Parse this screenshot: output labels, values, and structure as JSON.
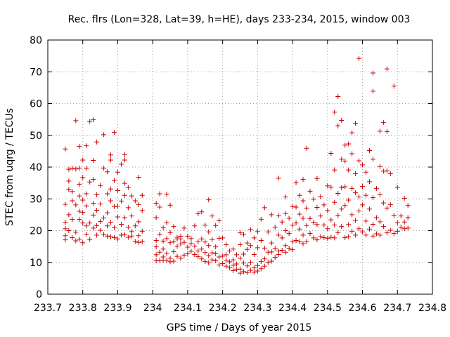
{
  "chart_data": {
    "type": "scatter",
    "title": "Rec. flrs (Lon=328, Lat=39, h=HE), days 233-234, 2015, window 003",
    "xlabel": "GPS time / Days of year 2015",
    "ylabel": "STEC from uqrg / TECUs",
    "xlim": [
      233.7,
      234.8
    ],
    "ylim": [
      0,
      80
    ],
    "x_ticks": [
      233.7,
      233.8,
      233.9,
      234.0,
      234.1,
      234.2,
      234.3,
      234.4,
      234.5,
      234.6,
      234.7,
      234.8
    ],
    "x_tick_labels": [
      "233.7",
      "233.8",
      "233.9",
      "234",
      "234.1",
      "234.2",
      "234.3",
      "234.4",
      "234.5",
      "234.6",
      "234.7",
      "234.8"
    ],
    "y_ticks": [
      0,
      10,
      20,
      30,
      40,
      50,
      60,
      70,
      80
    ],
    "y_tick_labels": [
      "0",
      "10",
      "20",
      "30",
      "40",
      "50",
      "60",
      "70",
      "80"
    ],
    "grid": true,
    "marker": "+",
    "color": "#cc0000",
    "points": [
      [
        233.75,
        45.7
      ],
      [
        233.75,
        28.3
      ],
      [
        233.75,
        22.6
      ],
      [
        233.75,
        20.6
      ],
      [
        233.75,
        18.4
      ],
      [
        233.75,
        17.1
      ],
      [
        233.76,
        39.3
      ],
      [
        233.76,
        35.6
      ],
      [
        233.76,
        33.0
      ],
      [
        233.76,
        25.0
      ],
      [
        233.76,
        20.0
      ],
      [
        233.77,
        39.6
      ],
      [
        233.77,
        32.3
      ],
      [
        233.77,
        29.4
      ],
      [
        233.77,
        23.5
      ],
      [
        233.77,
        17.8
      ],
      [
        233.78,
        54.6
      ],
      [
        233.78,
        39.4
      ],
      [
        233.78,
        28.1
      ],
      [
        233.78,
        19.5
      ],
      [
        233.78,
        16.8
      ],
      [
        233.79,
        46.5
      ],
      [
        233.79,
        39.7
      ],
      [
        233.79,
        34.6
      ],
      [
        233.79,
        30.9
      ],
      [
        233.79,
        26.1
      ],
      [
        233.79,
        23.5
      ],
      [
        233.79,
        17.3
      ],
      [
        233.8,
        42.2
      ],
      [
        233.8,
        36.7
      ],
      [
        233.8,
        29.6
      ],
      [
        233.8,
        25.7
      ],
      [
        233.8,
        22.4
      ],
      [
        233.8,
        16.2
      ],
      [
        233.81,
        46.7
      ],
      [
        233.81,
        39.6
      ],
      [
        233.81,
        31.6
      ],
      [
        233.81,
        27.8
      ],
      [
        233.81,
        21.5
      ],
      [
        233.81,
        18.9
      ],
      [
        233.82,
        54.4
      ],
      [
        233.82,
        35.3
      ],
      [
        233.82,
        22.4
      ],
      [
        233.82,
        17.2
      ],
      [
        233.83,
        54.9
      ],
      [
        233.83,
        42.1
      ],
      [
        233.83,
        36.1
      ],
      [
        233.83,
        28.6
      ],
      [
        233.83,
        24.9
      ],
      [
        233.83,
        20.8
      ],
      [
        233.84,
        47.9
      ],
      [
        233.84,
        31.3
      ],
      [
        233.84,
        26.4
      ],
      [
        233.84,
        21.6
      ],
      [
        233.84,
        18.6
      ],
      [
        233.85,
        34.2
      ],
      [
        233.85,
        28.4
      ],
      [
        233.85,
        22.9
      ],
      [
        233.85,
        20.1
      ],
      [
        233.86,
        50.2
      ],
      [
        233.86,
        39.7
      ],
      [
        233.86,
        24.0
      ],
      [
        233.86,
        18.8
      ],
      [
        233.87,
        38.5
      ],
      [
        233.87,
        31.6
      ],
      [
        233.87,
        25.6
      ],
      [
        233.87,
        21.5
      ],
      [
        233.87,
        18.3
      ],
      [
        233.88,
        43.8
      ],
      [
        233.88,
        42.2
      ],
      [
        233.88,
        33.1
      ],
      [
        233.88,
        29.4
      ],
      [
        233.88,
        22.6
      ],
      [
        233.88,
        18.1
      ],
      [
        233.89,
        50.9
      ],
      [
        233.89,
        35.8
      ],
      [
        233.89,
        27.6
      ],
      [
        233.89,
        20.9
      ],
      [
        233.89,
        17.8
      ],
      [
        233.9,
        38.4
      ],
      [
        233.9,
        32.6
      ],
      [
        233.9,
        27.7
      ],
      [
        233.9,
        24.3
      ],
      [
        233.9,
        17.4
      ],
      [
        233.91,
        40.9
      ],
      [
        233.91,
        29.3
      ],
      [
        233.91,
        22.0
      ],
      [
        233.91,
        18.6
      ],
      [
        233.92,
        43.9
      ],
      [
        233.92,
        42.2
      ],
      [
        233.92,
        34.9
      ],
      [
        233.92,
        31.1
      ],
      [
        233.92,
        24.1
      ],
      [
        233.92,
        18.7
      ],
      [
        233.93,
        33.6
      ],
      [
        233.93,
        27.2
      ],
      [
        233.93,
        21.1
      ],
      [
        233.93,
        17.9
      ],
      [
        233.94,
        30.9
      ],
      [
        233.94,
        24.6
      ],
      [
        233.94,
        19.7
      ],
      [
        233.94,
        18.3
      ],
      [
        233.95,
        29.4
      ],
      [
        233.95,
        21.5
      ],
      [
        233.95,
        16.6
      ],
      [
        233.96,
        36.8
      ],
      [
        233.96,
        28.2
      ],
      [
        233.96,
        22.8
      ],
      [
        233.96,
        18.4
      ],
      [
        233.96,
        16.3
      ],
      [
        233.97,
        31.1
      ],
      [
        233.97,
        26.3
      ],
      [
        233.97,
        19.8
      ],
      [
        233.97,
        16.5
      ],
      [
        234.01,
        28.6
      ],
      [
        234.01,
        24.1
      ],
      [
        234.01,
        16.9
      ],
      [
        234.01,
        14.9
      ],
      [
        234.01,
        12.4
      ],
      [
        234.01,
        10.5
      ],
      [
        234.02,
        31.6
      ],
      [
        234.02,
        27.4
      ],
      [
        234.02,
        18.9
      ],
      [
        234.02,
        13.2
      ],
      [
        234.02,
        10.6
      ],
      [
        234.03,
        20.9
      ],
      [
        234.03,
        16.7
      ],
      [
        234.03,
        14.2
      ],
      [
        234.03,
        11.7
      ],
      [
        234.03,
        10.7
      ],
      [
        234.04,
        31.5
      ],
      [
        234.04,
        22.5
      ],
      [
        234.04,
        17.5
      ],
      [
        234.04,
        12.9
      ],
      [
        234.04,
        10.6
      ],
      [
        234.05,
        28.0
      ],
      [
        234.05,
        19.4
      ],
      [
        234.05,
        16.2
      ],
      [
        234.05,
        11.3
      ],
      [
        234.05,
        10.2
      ],
      [
        234.06,
        21.3
      ],
      [
        234.06,
        16.5
      ],
      [
        234.06,
        13.4
      ],
      [
        234.06,
        10.4
      ],
      [
        234.07,
        17.9
      ],
      [
        234.07,
        17.4
      ],
      [
        234.07,
        15.1
      ],
      [
        234.07,
        11.9
      ],
      [
        234.08,
        18.2
      ],
      [
        234.08,
        17.4
      ],
      [
        234.08,
        15.8
      ],
      [
        234.08,
        11.3
      ],
      [
        234.09,
        20.8
      ],
      [
        234.09,
        16.3
      ],
      [
        234.09,
        12.3
      ],
      [
        234.1,
        18.2
      ],
      [
        234.1,
        14.8
      ],
      [
        234.1,
        12.7
      ],
      [
        234.11,
        17.5
      ],
      [
        234.11,
        15.9
      ],
      [
        234.11,
        13.5
      ],
      [
        234.12,
        21.5
      ],
      [
        234.12,
        15.1
      ],
      [
        234.12,
        12.5
      ],
      [
        234.13,
        25.3
      ],
      [
        234.13,
        16.5
      ],
      [
        234.13,
        13.6
      ],
      [
        234.13,
        11.8
      ],
      [
        234.14,
        25.9
      ],
      [
        234.14,
        17.4
      ],
      [
        234.14,
        14.2
      ],
      [
        234.14,
        11.1
      ],
      [
        234.15,
        21.7
      ],
      [
        234.15,
        16.4
      ],
      [
        234.15,
        13.1
      ],
      [
        234.15,
        10.3
      ],
      [
        234.16,
        29.7
      ],
      [
        234.16,
        19.6
      ],
      [
        234.16,
        15.3
      ],
      [
        234.16,
        12.1
      ],
      [
        234.16,
        9.9
      ],
      [
        234.17,
        24.6
      ],
      [
        234.17,
        17.2
      ],
      [
        234.17,
        13.0
      ],
      [
        234.17,
        10.8
      ],
      [
        234.18,
        21.6
      ],
      [
        234.18,
        14.9
      ],
      [
        234.18,
        12.7
      ],
      [
        234.18,
        10.5
      ],
      [
        234.19,
        23.1
      ],
      [
        234.19,
        17.6
      ],
      [
        234.19,
        11.7
      ],
      [
        234.19,
        9.2
      ],
      [
        234.2,
        17.7
      ],
      [
        234.2,
        12.0
      ],
      [
        234.2,
        9.6
      ],
      [
        234.21,
        15.6
      ],
      [
        234.21,
        12.4
      ],
      [
        234.21,
        10.6
      ],
      [
        234.21,
        8.8
      ],
      [
        234.22,
        13.6
      ],
      [
        234.22,
        10.2
      ],
      [
        234.22,
        8.3
      ],
      [
        234.23,
        14.2
      ],
      [
        234.23,
        10.8
      ],
      [
        234.23,
        9.1
      ],
      [
        234.23,
        7.4
      ],
      [
        234.24,
        12.4
      ],
      [
        234.24,
        9.5
      ],
      [
        234.24,
        7.8
      ],
      [
        234.25,
        19.3
      ],
      [
        234.25,
        15.6
      ],
      [
        234.25,
        11.3
      ],
      [
        234.25,
        7.9
      ],
      [
        234.25,
        6.6
      ],
      [
        234.26,
        18.9
      ],
      [
        234.26,
        12.6
      ],
      [
        234.26,
        9.8
      ],
      [
        234.26,
        7.1
      ],
      [
        234.27,
        16.1
      ],
      [
        234.27,
        14.1
      ],
      [
        234.27,
        8.9
      ],
      [
        234.27,
        6.8
      ],
      [
        234.28,
        20.3
      ],
      [
        234.28,
        15.3
      ],
      [
        234.28,
        10.0
      ],
      [
        234.28,
        7.5
      ],
      [
        234.29,
        17.7
      ],
      [
        234.29,
        12.5
      ],
      [
        234.29,
        8.3
      ],
      [
        234.29,
        6.9
      ],
      [
        234.3,
        19.7
      ],
      [
        234.3,
        14.6
      ],
      [
        234.3,
        9.0
      ],
      [
        234.3,
        7.3
      ],
      [
        234.31,
        23.6
      ],
      [
        234.31,
        16.9
      ],
      [
        234.31,
        10.3
      ],
      [
        234.31,
        8.0
      ],
      [
        234.32,
        27.2
      ],
      [
        234.32,
        14.5
      ],
      [
        234.32,
        11.1
      ],
      [
        234.32,
        8.8
      ],
      [
        234.33,
        19.6
      ],
      [
        234.33,
        13.2
      ],
      [
        234.33,
        10.0
      ],
      [
        234.34,
        25.0
      ],
      [
        234.34,
        16.1
      ],
      [
        234.34,
        13.3
      ],
      [
        234.34,
        10.4
      ],
      [
        234.35,
        21.1
      ],
      [
        234.35,
        14.4
      ],
      [
        234.35,
        11.6
      ],
      [
        234.36,
        36.5
      ],
      [
        234.36,
        24.7
      ],
      [
        234.36,
        18.6
      ],
      [
        234.36,
        13.6
      ],
      [
        234.36,
        12.5
      ],
      [
        234.37,
        22.7
      ],
      [
        234.37,
        17.7
      ],
      [
        234.37,
        13.8
      ],
      [
        234.38,
        30.6
      ],
      [
        234.38,
        25.4
      ],
      [
        234.38,
        20.0
      ],
      [
        234.38,
        15.3
      ],
      [
        234.38,
        13.2
      ],
      [
        234.39,
        23.9
      ],
      [
        234.39,
        19.1
      ],
      [
        234.39,
        14.4
      ],
      [
        234.4,
        27.6
      ],
      [
        234.4,
        21.7
      ],
      [
        234.4,
        16.5
      ],
      [
        234.4,
        14.0
      ],
      [
        234.41,
        35.1
      ],
      [
        234.41,
        27.4
      ],
      [
        234.41,
        22.4
      ],
      [
        234.41,
        16.9
      ],
      [
        234.42,
        31.1
      ],
      [
        234.42,
        25.2
      ],
      [
        234.42,
        20.5
      ],
      [
        234.42,
        16.6
      ],
      [
        234.43,
        36.1
      ],
      [
        234.43,
        29.4
      ],
      [
        234.43,
        23.9
      ],
      [
        234.43,
        18.6
      ],
      [
        234.43,
        15.9
      ],
      [
        234.44,
        45.9
      ],
      [
        234.44,
        27.1
      ],
      [
        234.44,
        21.6
      ],
      [
        234.44,
        16.6
      ],
      [
        234.45,
        32.4
      ],
      [
        234.45,
        23.8
      ],
      [
        234.45,
        19.1
      ],
      [
        234.46,
        29.9
      ],
      [
        234.46,
        22.6
      ],
      [
        234.46,
        17.7
      ],
      [
        234.47,
        36.4
      ],
      [
        234.47,
        27.3
      ],
      [
        234.47,
        21.9
      ],
      [
        234.47,
        17.1
      ],
      [
        234.48,
        30.7
      ],
      [
        234.48,
        24.6
      ],
      [
        234.48,
        18.1
      ],
      [
        234.49,
        28.1
      ],
      [
        234.49,
        21.8
      ],
      [
        234.49,
        17.8
      ],
      [
        234.5,
        34.1
      ],
      [
        234.5,
        26.3
      ],
      [
        234.5,
        20.6
      ],
      [
        234.5,
        17.6
      ],
      [
        234.51,
        44.3
      ],
      [
        234.51,
        33.7
      ],
      [
        234.51,
        23.4
      ],
      [
        234.51,
        17.9
      ],
      [
        234.52,
        57.3
      ],
      [
        234.52,
        39.1
      ],
      [
        234.52,
        28.9
      ],
      [
        234.52,
        21.8
      ],
      [
        234.52,
        17.7
      ],
      [
        234.53,
        62.2
      ],
      [
        234.53,
        53.0
      ],
      [
        234.53,
        31.7
      ],
      [
        234.53,
        24.8
      ],
      [
        234.53,
        19.4
      ],
      [
        234.54,
        54.7
      ],
      [
        234.54,
        42.5
      ],
      [
        234.54,
        33.5
      ],
      [
        234.54,
        26.8
      ],
      [
        234.54,
        21.3
      ],
      [
        234.55,
        46.9
      ],
      [
        234.55,
        41.9
      ],
      [
        234.55,
        33.8
      ],
      [
        234.55,
        27.9
      ],
      [
        234.55,
        17.8
      ],
      [
        234.56,
        47.3
      ],
      [
        234.56,
        39.1
      ],
      [
        234.56,
        29.6
      ],
      [
        234.56,
        21.9
      ],
      [
        234.56,
        18.1
      ],
      [
        234.57,
        50.8
      ],
      [
        234.57,
        44.2
      ],
      [
        234.57,
        33.3
      ],
      [
        234.57,
        25.0
      ],
      [
        234.57,
        19.8
      ],
      [
        234.58,
        53.8
      ],
      [
        234.58,
        37.9
      ],
      [
        234.58,
        31.9
      ],
      [
        234.58,
        23.2
      ],
      [
        234.58,
        18.6
      ],
      [
        234.59,
        74.2
      ],
      [
        234.59,
        42.0
      ],
      [
        234.59,
        30.6
      ],
      [
        234.59,
        26.2
      ],
      [
        234.59,
        20.6
      ],
      [
        234.6,
        40.7
      ],
      [
        234.6,
        33.9
      ],
      [
        234.6,
        28.1
      ],
      [
        234.6,
        19.6
      ],
      [
        234.61,
        38.4
      ],
      [
        234.61,
        31.1
      ],
      [
        234.61,
        23.0
      ],
      [
        234.61,
        18.6
      ],
      [
        234.62,
        45.2
      ],
      [
        234.62,
        35.4
      ],
      [
        234.62,
        26.8
      ],
      [
        234.62,
        20.5
      ],
      [
        234.63,
        69.6
      ],
      [
        234.63,
        63.9
      ],
      [
        234.63,
        42.5
      ],
      [
        234.63,
        30.4
      ],
      [
        234.63,
        22.0
      ],
      [
        234.63,
        18.3
      ],
      [
        234.64,
        33.3
      ],
      [
        234.64,
        24.1
      ],
      [
        234.64,
        19.0
      ],
      [
        234.65,
        51.3
      ],
      [
        234.65,
        40.2
      ],
      [
        234.65,
        31.3
      ],
      [
        234.65,
        22.8
      ],
      [
        234.65,
        18.6
      ],
      [
        234.66,
        54.0
      ],
      [
        234.66,
        38.7
      ],
      [
        234.66,
        28.7
      ],
      [
        234.66,
        21.3
      ],
      [
        234.67,
        70.9
      ],
      [
        234.67,
        51.2
      ],
      [
        234.67,
        38.8
      ],
      [
        234.67,
        27.1
      ],
      [
        234.67,
        19.3
      ],
      [
        234.68,
        37.9
      ],
      [
        234.68,
        28.2
      ],
      [
        234.68,
        20.1
      ],
      [
        234.69,
        65.5
      ],
      [
        234.69,
        24.8
      ],
      [
        234.69,
        19.1
      ],
      [
        234.7,
        33.6
      ],
      [
        234.7,
        22.5
      ],
      [
        234.7,
        19.8
      ],
      [
        234.71,
        24.6
      ],
      [
        234.71,
        21.1
      ],
      [
        234.72,
        30.2
      ],
      [
        234.72,
        22.7
      ],
      [
        234.72,
        20.6
      ],
      [
        234.73,
        27.9
      ],
      [
        234.73,
        24.1
      ],
      [
        234.73,
        20.8
      ]
    ]
  }
}
